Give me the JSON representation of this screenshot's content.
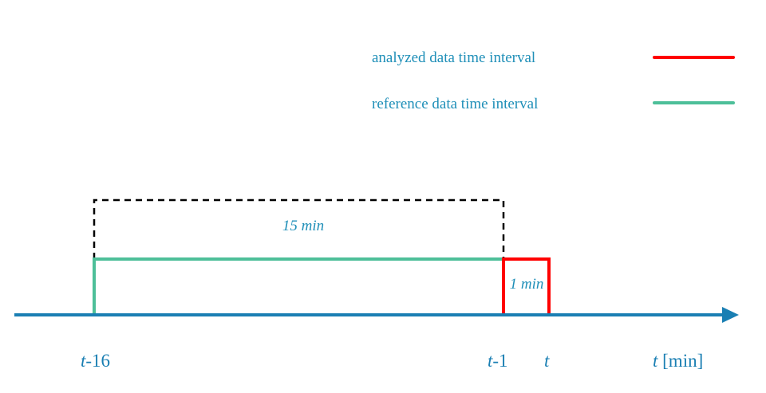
{
  "colors": {
    "analyzed": "#ff0000",
    "reference": "#4dbf99",
    "window": "#000000",
    "axis": "#1a7fb3",
    "text": "#1f8fb8"
  },
  "legend": {
    "analyzed_label": "analyzed data time interval",
    "reference_label": "reference data time interval"
  },
  "durations": {
    "reference": "15 min",
    "analyzed": "1 min"
  },
  "ticks": {
    "start": {
      "var": "t",
      "suffix": "-16"
    },
    "prev": {
      "var": "t",
      "suffix": "-1"
    },
    "now": {
      "var": "t",
      "suffix": ""
    }
  },
  "axis": {
    "var": "t",
    "unit": " [min]"
  }
}
